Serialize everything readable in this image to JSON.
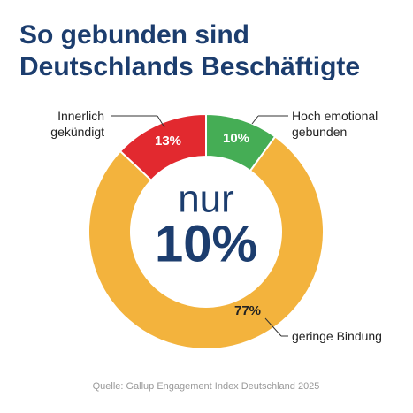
{
  "chart_data": {
    "type": "donut",
    "title": "So gebunden sind Deutschlands Beschäftigte",
    "categories": [
      "Hoch emotional gebunden",
      "geringe Bindung",
      "Innerlich gekündigt"
    ],
    "values": [
      10,
      77,
      13
    ],
    "value_labels": [
      "10%",
      "77%",
      "13%"
    ],
    "colors": [
      "#45ad55",
      "#f3b33d",
      "#e2292f"
    ],
    "center_text": [
      "nur",
      "10%"
    ],
    "source": "Quelle: Gallup Engagement Index Deutschland 2025"
  }
}
